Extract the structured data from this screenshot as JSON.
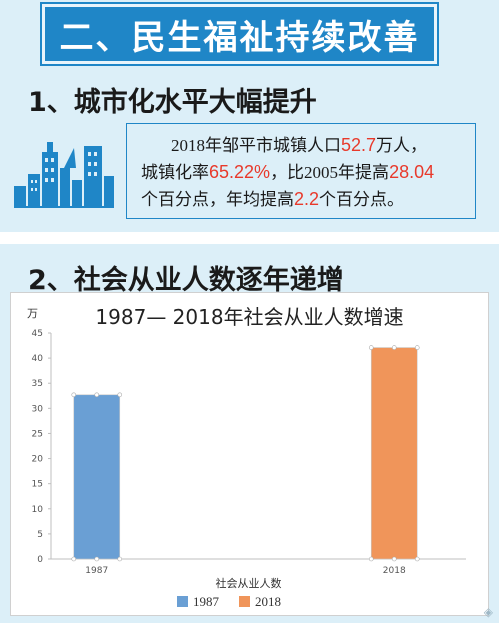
{
  "banner": {
    "title": "二、民生福祉持续改善"
  },
  "section1": {
    "title": "1、城市化水平大幅提升",
    "text": {
      "line1_a": "2018年邹平市城镇人口",
      "pop": "52.7",
      "line1_b": "万人，",
      "line2_a": "城镇化率",
      "rate": "65.22%",
      "line2_b": "，比2005年提高",
      "increase": "28.04",
      "line3_a": "个百分点，年均提高",
      "avg": "2.2",
      "line3_b": "个百分点。"
    }
  },
  "section2": {
    "title": "2、社会从业人数逐年递增"
  },
  "chart_data": {
    "type": "bar",
    "title": "1987— 2018年社会从业人数增速",
    "unit": "万",
    "xlabel": "社会从业人数",
    "categories": [
      "1987",
      "2018"
    ],
    "values": [
      32.7,
      42.1
    ],
    "colors": [
      "#6a9fd4",
      "#f0955a"
    ],
    "ylim": [
      0,
      45
    ],
    "yticks": [
      0,
      5,
      10,
      15,
      20,
      25,
      30,
      35,
      40,
      45
    ],
    "grid": false,
    "legend": {
      "position": "bottom",
      "entries": [
        "1987",
        "2018"
      ]
    }
  },
  "colors": {
    "banner": "#1f86c7",
    "highlight": "#e8392b",
    "background": "#dceff8"
  }
}
